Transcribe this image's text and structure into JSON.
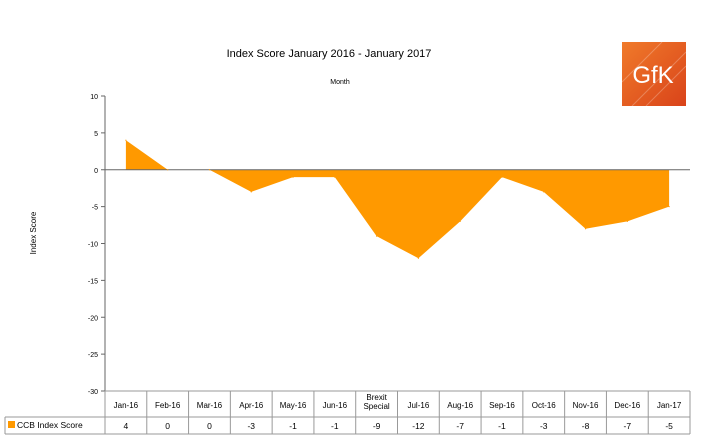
{
  "chart_data": {
    "type": "area",
    "title": "Index Score January 2016  -  January 2017",
    "subtitle": "Month",
    "xlabel": "",
    "ylabel": "Index Score",
    "categories": [
      "Jan-16",
      "Feb-16",
      "Mar-16",
      "Apr-16",
      "May-16",
      "Jun-16",
      "Brexit Special",
      "Jul-16",
      "Aug-16",
      "Sep-16",
      "Oct-16",
      "Nov-16",
      "Dec-16",
      "Jan-17"
    ],
    "series": [
      {
        "name": "CCB Index Score",
        "values": [
          4,
          0,
          0,
          -3,
          -1,
          -1,
          -9,
          -12,
          -7,
          -1,
          -3,
          -8,
          -7,
          -5
        ],
        "color": "#FF9900"
      }
    ],
    "ylim": [
      -30,
      10
    ],
    "yticks": [
      "10",
      "5",
      "0",
      "-5",
      "-10",
      "-15",
      "-20",
      "-25",
      "-30"
    ],
    "table": {
      "row_label": "CCB Index Score",
      "values": [
        "4",
        "0",
        "0",
        "-3",
        "-1",
        "-1",
        "-9",
        "-12",
        "-7",
        "-1",
        "-3",
        "-8",
        "-7",
        "-5"
      ]
    },
    "grid": false,
    "legend": "data-table"
  },
  "logo": {
    "text": "GfK",
    "color": "#E55A1B"
  }
}
